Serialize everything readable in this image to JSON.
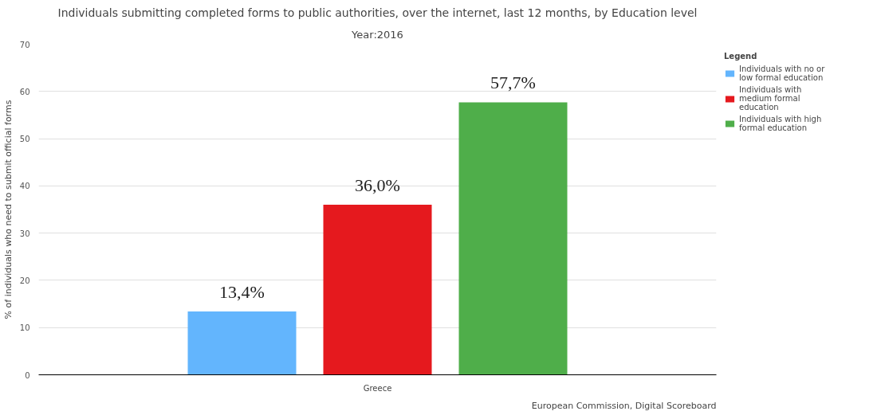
{
  "chart_data": {
    "type": "bar",
    "title": "Individuals submitting completed forms to public authorities, over the internet, last 12 months, by Education level",
    "subtitle": "Year:2016",
    "ylabel": "% of individuals who need to submit official forms",
    "legend_title": "Legend",
    "categories": [
      "Greece"
    ],
    "series": [
      {
        "name": "Individuals with no or low formal education",
        "color": "#63b5fd",
        "values": [
          13.4
        ],
        "value_labels": [
          "13,4%"
        ]
      },
      {
        "name": "Individuals with medium formal education",
        "color": "#e5191e",
        "values": [
          36.0
        ],
        "value_labels": [
          "36,0%"
        ]
      },
      {
        "name": "Individuals with high formal education",
        "color": "#4fae4a",
        "values": [
          57.7
        ],
        "value_labels": [
          "57,7%"
        ]
      }
    ],
    "ylim": [
      0,
      70
    ],
    "yticks": [
      0,
      10,
      20,
      30,
      40,
      50,
      60,
      70
    ],
    "grid": "y",
    "legend": "top right",
    "annotations": [
      "European Commission, Digital Scoreboard"
    ]
  }
}
